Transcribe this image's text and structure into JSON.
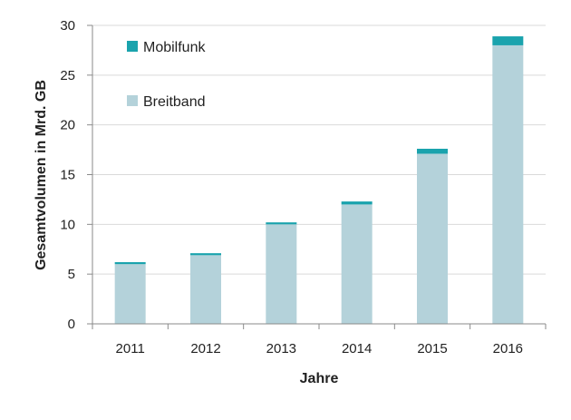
{
  "chart_data": {
    "type": "bar",
    "stacked": true,
    "categories": [
      "2011",
      "2012",
      "2013",
      "2014",
      "2015",
      "2016"
    ],
    "series": [
      {
        "name": "Breitband",
        "values": [
          6.0,
          6.9,
          10.0,
          12.0,
          17.1,
          28.0
        ],
        "color": "#b4d2da"
      },
      {
        "name": "Mobilfunk",
        "values": [
          0.2,
          0.2,
          0.2,
          0.3,
          0.5,
          0.9
        ],
        "color": "#1aa3ad"
      }
    ],
    "xlabel": "Jahre",
    "ylabel": "Gesamtvolumen in Mrd. GB",
    "ylim": [
      0,
      30
    ],
    "yticks": [
      "0",
      "5",
      "10",
      "15",
      "20",
      "25",
      "30"
    ],
    "grid": true,
    "legend_position": "top-left"
  },
  "colors": {
    "grid": "#d9d9d9",
    "axis": "#8a8a8a"
  }
}
